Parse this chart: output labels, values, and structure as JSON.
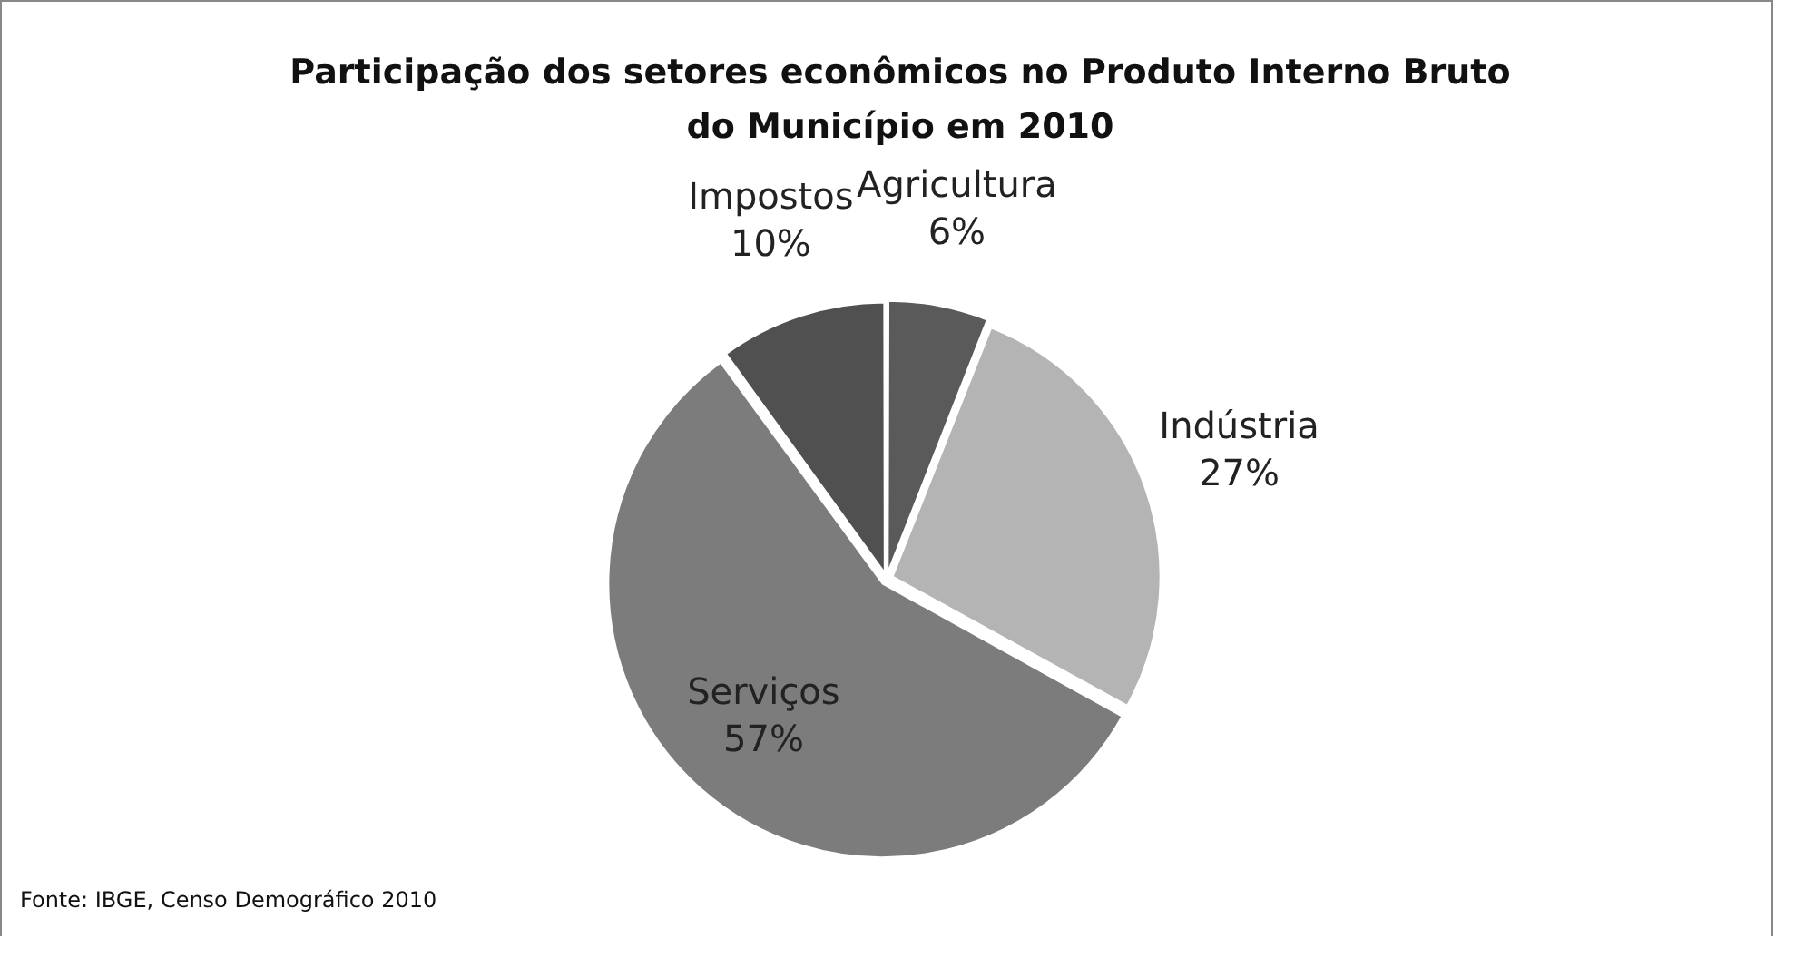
{
  "chart_data": {
    "type": "pie",
    "title": "Participação dos setores econômicos no Produto Interno Bruto do Município em 2010",
    "categories": [
      "Agricultura",
      "Indústria",
      "Serviços",
      "Impostos"
    ],
    "values": [
      6,
      27,
      57,
      10
    ],
    "value_labels": [
      "6%",
      "27%",
      "57%",
      "10%"
    ],
    "colors": [
      "#5a5a5a",
      "#b4b4b4",
      "#7c7c7c",
      "#505050"
    ],
    "legend": false,
    "annotations": [
      "Fonte: IBGE, Censo Demográfico 2010"
    ]
  }
}
